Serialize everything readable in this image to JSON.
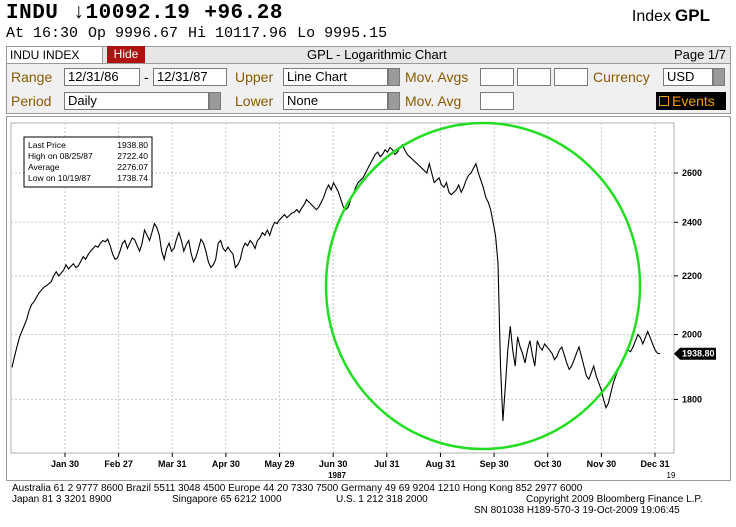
{
  "header": {
    "symbol": "INDU",
    "last": "↓10092.19",
    "change": "+96.28",
    "index_word": "Index",
    "function": "GPL",
    "time": "At 16:30",
    "open": "Op 9996.67",
    "high": "Hi 10117.96",
    "low": "Lo 9995.15"
  },
  "toolbar": {
    "security": "INDU INDEX",
    "hide_label": "Hide",
    "title": "GPL - Logarithmic Chart",
    "page": "Page 1/7"
  },
  "settings": {
    "range_label": "Range",
    "range_start": "12/31/86",
    "range_dash": "-",
    "range_end": "12/31/87",
    "upper_label": "Upper",
    "upper_value": "Line Chart",
    "mov_avgs_label": "Mov. Avgs",
    "currency_label": "Currency",
    "currency_value": "USD",
    "period_label": "Period",
    "period_value": "Daily",
    "lower_label": "Lower",
    "lower_value": "None",
    "mov_avg_label": "Mov. Avg",
    "events_label": "Events"
  },
  "stats_box": {
    "rows": [
      {
        "label": "Last Price",
        "value": "1938.80"
      },
      {
        "label": "High on  08/25/87",
        "value": "2722.40"
      },
      {
        "label": "Average",
        "value": "2276.07"
      },
      {
        "label": "Low on  10/19/87",
        "value": "1738.74"
      }
    ]
  },
  "chart_data": {
    "type": "line",
    "scale": "log",
    "ylim": [
      1650,
      2820
    ],
    "yticks": [
      1800,
      2000,
      2200,
      2400,
      2600
    ],
    "ytick_labels": [
      "1800",
      "2000",
      "2200",
      "2400",
      "2600"
    ],
    "xtick_labels": [
      "Jan 30",
      "Feb 27",
      "Mar 31",
      "Apr 30",
      "May 29",
      "Jun 30",
      "Jul 31",
      "Aug 31",
      "Sep 30",
      "Oct 30",
      "Nov 30",
      "Dec 31"
    ],
    "year_label": "1987",
    "corner_label": "19",
    "last_price_label": "1938.80",
    "grid": true,
    "annotation": "green circle around Aug-Nov 1987",
    "series": [
      {
        "values": [
          1896,
          1930,
          1960,
          1990,
          2010,
          2030,
          2050,
          2080,
          2100,
          2110,
          2125,
          2140,
          2150,
          2160,
          2165,
          2172,
          2180,
          2200,
          2215,
          2200,
          2210,
          2220,
          2240,
          2225,
          2235,
          2244,
          2230,
          2236,
          2252,
          2270,
          2260,
          2277,
          2290,
          2300,
          2310,
          2305,
          2320,
          2330,
          2325,
          2335,
          2310,
          2280,
          2260,
          2265,
          2290,
          2320,
          2330,
          2300,
          2320,
          2340,
          2333,
          2310,
          2290,
          2320,
          2370,
          2350,
          2330,
          2360,
          2395,
          2380,
          2350,
          2290,
          2260,
          2300,
          2320,
          2290,
          2300,
          2335,
          2360,
          2330,
          2290,
          2315,
          2330,
          2280,
          2250,
          2270,
          2300,
          2335,
          2320,
          2290,
          2250,
          2230,
          2240,
          2260,
          2320,
          2330,
          2300,
          2290,
          2305,
          2290,
          2280,
          2230,
          2240,
          2260,
          2300,
          2320,
          2310,
          2330,
          2320,
          2300,
          2330,
          2340,
          2360,
          2350,
          2370,
          2350,
          2380,
          2400,
          2395,
          2410,
          2420,
          2430,
          2418,
          2427,
          2436,
          2440,
          2450,
          2438,
          2455,
          2470,
          2490,
          2480,
          2470,
          2460,
          2450,
          2460,
          2480,
          2500,
          2530,
          2550,
          2530,
          2560,
          2540,
          2520,
          2490,
          2460,
          2450,
          2460,
          2490,
          2510,
          2540,
          2560,
          2570,
          2580,
          2600,
          2620,
          2640,
          2660,
          2680,
          2690,
          2670,
          2680,
          2700,
          2690,
          2710,
          2700,
          2680,
          2690,
          2710,
          2722,
          2700,
          2680,
          2670,
          2660,
          2650,
          2640,
          2630,
          2620,
          2610,
          2600,
          2640,
          2600,
          2560,
          2570,
          2580,
          2550,
          2540,
          2560,
          2520,
          2510,
          2520,
          2530,
          2550,
          2520,
          2540,
          2570,
          2590,
          2600,
          2620,
          2640,
          2600,
          2570,
          2540,
          2500,
          2480,
          2450,
          2400,
          2350,
          2246,
          1900,
          1738,
          1841,
          1950,
          2027,
          1950,
          1900,
          1993,
          1960,
          1940,
          1910,
          1950,
          1980,
          1935,
          1900,
          1980,
          1960,
          1950,
          1970,
          1960,
          1950,
          1940,
          1920,
          1930,
          1950,
          1960,
          1935,
          1910,
          1890,
          1900,
          1920,
          1940,
          1960,
          1930,
          1900,
          1870,
          1860,
          1880,
          1900,
          1870,
          1850,
          1830,
          1800,
          1776,
          1790,
          1820,
          1850,
          1870,
          1890,
          1900,
          1920,
          1940,
          1950,
          1945,
          1960,
          1980,
          2000,
          1990,
          1970,
          1990,
          2010,
          1990,
          1970,
          1950,
          1940,
          1938.8
        ]
      }
    ]
  },
  "footer": {
    "line1": "Australia 61 2 9777 8600 Brazil 5511 3048 4500 Europe 44 20 7330 7500 Germany 49 69 9204 1210 Hong Kong 852 2977 6000",
    "line2a": "Japan 81 3 3201 8900",
    "line2b": "Singapore 65 6212 1000",
    "line2c": "U.S. 1 212 318 2000",
    "line2d": "Copyright 2009 Bloomberg Finance L.P.",
    "line3": "SN 801038 H189-570-3 19-Oct-2009 19:06:45"
  },
  "colors": {
    "accent_red": "#b01212",
    "field_label": "#8a5a00",
    "events_text": "#f2a000",
    "circle": "#22dd22",
    "line": "#000000"
  }
}
